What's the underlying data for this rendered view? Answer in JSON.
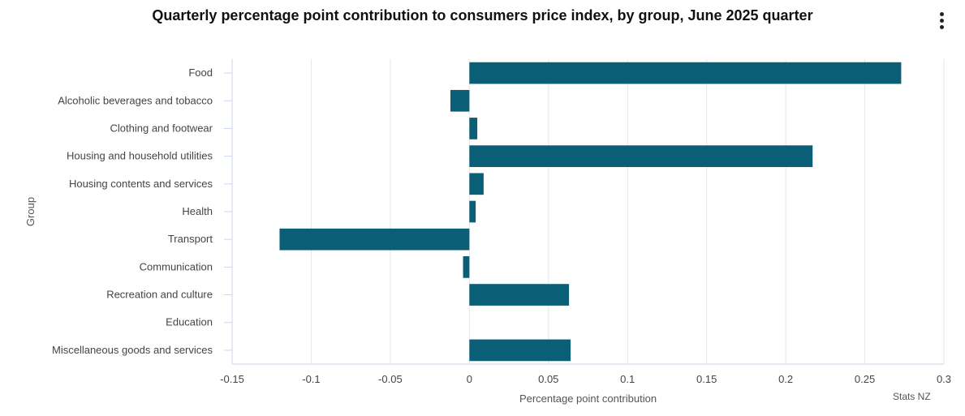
{
  "chart_data": {
    "type": "bar",
    "orientation": "horizontal",
    "title": "Quarterly percentage point contribution to consumers price index, by group, June 2025 quarter",
    "xlabel": "Percentage point contribution",
    "ylabel": "Group",
    "categories": [
      "Food",
      "Alcoholic beverages and tobacco",
      "Clothing and footwear",
      "Housing and household utilities",
      "Housing contents and services",
      "Health",
      "Transport",
      "Communication",
      "Recreation and culture",
      "Education",
      "Miscellaneous goods and services"
    ],
    "values": [
      0.273,
      -0.012,
      0.005,
      0.217,
      0.009,
      0.004,
      -0.12,
      -0.004,
      0.063,
      0.0,
      0.064
    ],
    "xlim": [
      -0.15,
      0.3
    ],
    "xticks": [
      -0.15,
      -0.1,
      -0.05,
      0,
      0.05,
      0.1,
      0.15,
      0.2,
      0.25,
      0.3
    ],
    "xtick_labels": [
      "-0.15",
      "-0.1",
      "-0.05",
      "0",
      "0.05",
      "0.1",
      "0.15",
      "0.2",
      "0.25",
      "0.3"
    ],
    "grid": "vertical",
    "bar_color": "#0a5e75",
    "legend": "none"
  },
  "credit": "Stats NZ",
  "menu_icon": "vertical-ellipsis-icon"
}
